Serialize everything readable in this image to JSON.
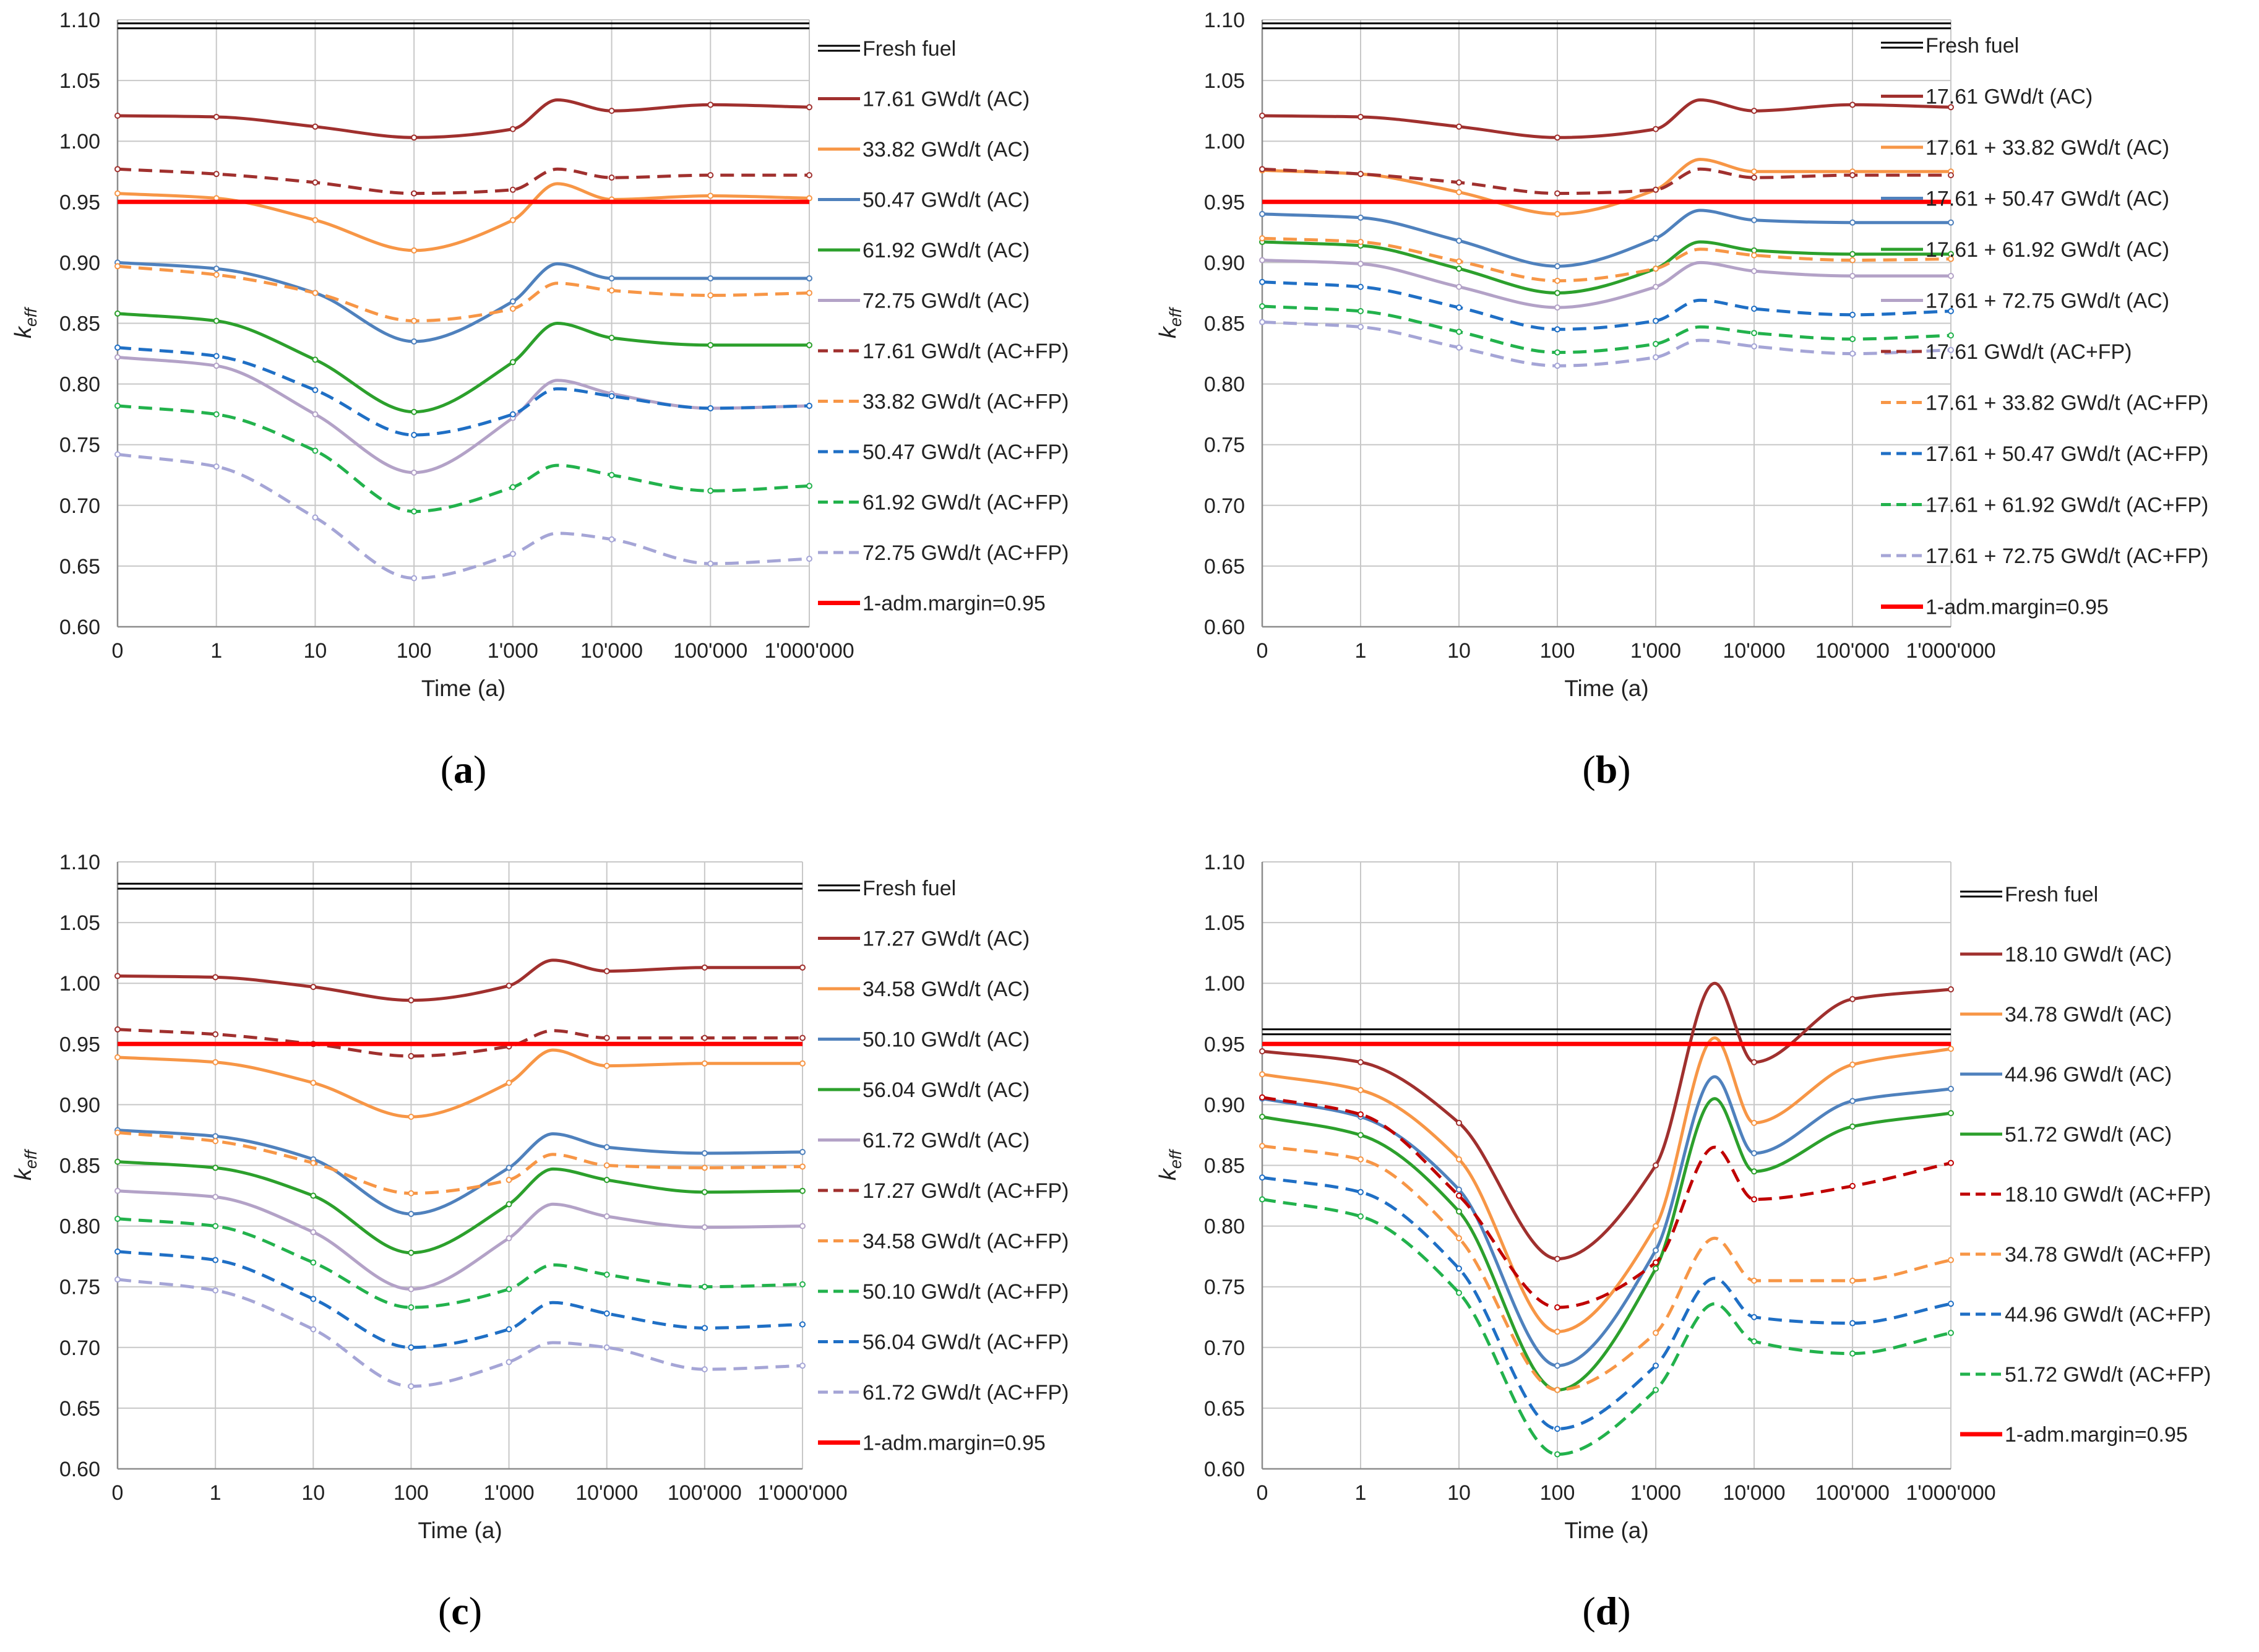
{
  "x_ticks": [
    "0",
    "1",
    "10",
    "100",
    "1'000",
    "10'000",
    "100'000",
    "1'000'000"
  ],
  "y_ticks": [
    "0.60",
    "0.65",
    "0.70",
    "0.75",
    "0.80",
    "0.85",
    "0.90",
    "0.95",
    "1.00",
    "1.05",
    "1.10"
  ],
  "chart_data": [
    {
      "type": "line",
      "panel_label": "a",
      "xlabel": "Time (a)",
      "ylabel": "keff",
      "ylim": [
        0.6,
        1.1
      ],
      "x": [
        0,
        1,
        10,
        100,
        1000,
        10000,
        100000,
        1000000
      ],
      "fresh_fuel": {
        "name": "Fresh fuel",
        "value": 1.095,
        "color": "#000000"
      },
      "margin": {
        "name": "1-adm.margin=0.95",
        "value": 0.95,
        "color": "#ff0000"
      },
      "series": [
        {
          "name": "17.61 GWd/t (AC)",
          "color": "#a0302e",
          "dash": false,
          "values": [
            1.021,
            1.02,
            1.012,
            1.003,
            1.01,
            1.025,
            1.03,
            1.028
          ],
          "feature": {
            "x": 4.45,
            "v": 1.034
          }
        },
        {
          "name": "33.82 GWd/t (AC)",
          "color": "#f79646",
          "dash": false,
          "values": [
            0.957,
            0.953,
            0.935,
            0.91,
            0.935,
            0.952,
            0.955,
            0.953
          ],
          "feature": {
            "x": 4.45,
            "v": 0.965
          }
        },
        {
          "name": "50.47 GWd/t (AC)",
          "color": "#4f81bd",
          "dash": false,
          "values": [
            0.9,
            0.895,
            0.875,
            0.835,
            0.868,
            0.887,
            0.887,
            0.887
          ],
          "feature": {
            "x": 4.45,
            "v": 0.899
          }
        },
        {
          "name": "61.92 GWd/t (AC)",
          "color": "#2ca02c",
          "dash": false,
          "values": [
            0.858,
            0.852,
            0.82,
            0.777,
            0.818,
            0.838,
            0.832,
            0.832
          ],
          "feature": {
            "x": 4.45,
            "v": 0.85
          }
        },
        {
          "name": "72.75 GWd/t (AC)",
          "color": "#b3a2c7",
          "dash": false,
          "values": [
            0.822,
            0.815,
            0.775,
            0.727,
            0.772,
            0.792,
            0.78,
            0.782
          ],
          "feature": {
            "x": 4.45,
            "v": 0.803
          }
        },
        {
          "name": "17.61 GWd/t (AC+FP)",
          "color": "#a0302e",
          "dash": true,
          "values": [
            0.977,
            0.973,
            0.966,
            0.957,
            0.96,
            0.97,
            0.972,
            0.972
          ],
          "feature": {
            "x": 4.45,
            "v": 0.977
          }
        },
        {
          "name": "33.82 GWd/t (AC+FP)",
          "color": "#f79646",
          "dash": true,
          "values": [
            0.897,
            0.89,
            0.875,
            0.852,
            0.862,
            0.877,
            0.873,
            0.875
          ],
          "feature": {
            "x": 4.45,
            "v": 0.883
          }
        },
        {
          "name": "50.47 GWd/t (AC+FP)",
          "color": "#1f6fc5",
          "dash": true,
          "values": [
            0.83,
            0.823,
            0.795,
            0.758,
            0.775,
            0.79,
            0.78,
            0.782
          ],
          "feature": {
            "x": 4.45,
            "v": 0.796
          }
        },
        {
          "name": "61.92 GWd/t (AC+FP)",
          "color": "#22b24c",
          "dash": true,
          "values": [
            0.782,
            0.775,
            0.745,
            0.695,
            0.715,
            0.725,
            0.712,
            0.716
          ],
          "feature": {
            "x": 4.45,
            "v": 0.733
          }
        },
        {
          "name": "72.75 GWd/t (AC+FP)",
          "color": "#a5a5d6",
          "dash": true,
          "values": [
            0.742,
            0.732,
            0.69,
            0.64,
            0.66,
            0.672,
            0.652,
            0.656
          ],
          "feature": {
            "x": 4.45,
            "v": 0.677
          }
        }
      ]
    },
    {
      "type": "line",
      "panel_label": "b",
      "xlabel": "Time (a)",
      "ylabel": "keff",
      "ylim": [
        0.6,
        1.1
      ],
      "x": [
        0,
        1,
        10,
        100,
        1000,
        10000,
        100000,
        1000000
      ],
      "fresh_fuel": {
        "name": "Fresh fuel",
        "value": 1.095,
        "color": "#000000"
      },
      "margin": {
        "name": "1-adm.margin=0.95",
        "value": 0.95,
        "color": "#ff0000"
      },
      "series": [
        {
          "name": "17.61 GWd/t (AC)",
          "color": "#a0302e",
          "dash": false,
          "values": [
            1.021,
            1.02,
            1.012,
            1.003,
            1.01,
            1.025,
            1.03,
            1.028
          ],
          "feature": {
            "x": 4.45,
            "v": 1.034
          }
        },
        {
          "name": "17.61 + 33.82 GWd/t (AC)",
          "color": "#f79646",
          "dash": false,
          "values": [
            0.976,
            0.973,
            0.958,
            0.94,
            0.96,
            0.975,
            0.975,
            0.975
          ],
          "feature": {
            "x": 4.45,
            "v": 0.985
          }
        },
        {
          "name": "17.61 + 50.47 GWd/t (AC)",
          "color": "#4f81bd",
          "dash": false,
          "values": [
            0.94,
            0.937,
            0.918,
            0.897,
            0.92,
            0.935,
            0.933,
            0.933
          ],
          "feature": {
            "x": 4.45,
            "v": 0.943
          }
        },
        {
          "name": "17.61 + 61.92 GWd/t (AC)",
          "color": "#2ca02c",
          "dash": false,
          "values": [
            0.917,
            0.914,
            0.895,
            0.875,
            0.895,
            0.91,
            0.907,
            0.907
          ],
          "feature": {
            "x": 4.45,
            "v": 0.917
          }
        },
        {
          "name": "17.61 + 72.75 GWd/t (AC)",
          "color": "#b3a2c7",
          "dash": false,
          "values": [
            0.902,
            0.899,
            0.88,
            0.863,
            0.88,
            0.893,
            0.889,
            0.889
          ],
          "feature": {
            "x": 4.45,
            "v": 0.9
          }
        },
        {
          "name": "17.61 GWd/t (AC+FP)",
          "color": "#a0302e",
          "dash": true,
          "values": [
            0.977,
            0.973,
            0.966,
            0.957,
            0.96,
            0.97,
            0.972,
            0.972
          ],
          "feature": {
            "x": 4.45,
            "v": 0.977
          }
        },
        {
          "name": "17.61 + 33.82 GWd/t (AC+FP)",
          "color": "#f79646",
          "dash": true,
          "values": [
            0.92,
            0.917,
            0.901,
            0.885,
            0.895,
            0.906,
            0.902,
            0.903
          ],
          "feature": {
            "x": 4.45,
            "v": 0.911
          }
        },
        {
          "name": "17.61 + 50.47 GWd/t (AC+FP)",
          "color": "#1f6fc5",
          "dash": true,
          "values": [
            0.884,
            0.88,
            0.863,
            0.845,
            0.852,
            0.862,
            0.857,
            0.86
          ],
          "feature": {
            "x": 4.45,
            "v": 0.869
          }
        },
        {
          "name": "17.61 + 61.92 GWd/t (AC+FP)",
          "color": "#22b24c",
          "dash": true,
          "values": [
            0.864,
            0.86,
            0.843,
            0.826,
            0.833,
            0.842,
            0.837,
            0.84
          ],
          "feature": {
            "x": 4.45,
            "v": 0.847
          }
        },
        {
          "name": "17.61 + 72.75 GWd/t (AC+FP)",
          "color": "#a5a5d6",
          "dash": true,
          "values": [
            0.851,
            0.847,
            0.83,
            0.815,
            0.822,
            0.831,
            0.825,
            0.828
          ],
          "feature": {
            "x": 4.45,
            "v": 0.836
          }
        }
      ]
    },
    {
      "type": "line",
      "panel_label": "c",
      "xlabel": "Time (a)",
      "ylabel": "keff",
      "ylim": [
        0.6,
        1.1
      ],
      "x": [
        0,
        1,
        10,
        100,
        1000,
        10000,
        100000,
        1000000
      ],
      "fresh_fuel": {
        "name": "Fresh fuel",
        "value": 1.08,
        "color": "#000000"
      },
      "margin": {
        "name": "1-adm.margin=0.95",
        "value": 0.95,
        "color": "#ff0000"
      },
      "series": [
        {
          "name": "17.27 GWd/t (AC)",
          "color": "#a0302e",
          "dash": false,
          "values": [
            1.006,
            1.005,
            0.997,
            0.986,
            0.998,
            1.01,
            1.013,
            1.013
          ],
          "feature": {
            "x": 4.45,
            "v": 1.019
          }
        },
        {
          "name": "34.58 GWd/t (AC)",
          "color": "#f79646",
          "dash": false,
          "values": [
            0.939,
            0.935,
            0.918,
            0.89,
            0.918,
            0.932,
            0.934,
            0.934
          ],
          "feature": {
            "x": 4.45,
            "v": 0.945
          }
        },
        {
          "name": "50.10 GWd/t (AC)",
          "color": "#4f81bd",
          "dash": false,
          "values": [
            0.879,
            0.874,
            0.855,
            0.81,
            0.848,
            0.865,
            0.86,
            0.861
          ],
          "feature": {
            "x": 4.45,
            "v": 0.876
          }
        },
        {
          "name": "56.04 GWd/t (AC)",
          "color": "#2ca02c",
          "dash": false,
          "values": [
            0.853,
            0.848,
            0.825,
            0.778,
            0.818,
            0.838,
            0.828,
            0.829
          ],
          "feature": {
            "x": 4.45,
            "v": 0.847
          }
        },
        {
          "name": "61.72 GWd/t (AC)",
          "color": "#b3a2c7",
          "dash": false,
          "values": [
            0.829,
            0.824,
            0.795,
            0.748,
            0.79,
            0.808,
            0.799,
            0.8
          ],
          "feature": {
            "x": 4.45,
            "v": 0.818
          }
        },
        {
          "name": "17.27 GWd/t (AC+FP)",
          "color": "#a0302e",
          "dash": true,
          "values": [
            0.962,
            0.958,
            0.95,
            0.94,
            0.948,
            0.955,
            0.955,
            0.955
          ],
          "feature": {
            "x": 4.45,
            "v": 0.961
          }
        },
        {
          "name": "34.58 GWd/t (AC+FP)",
          "color": "#f79646",
          "dash": true,
          "values": [
            0.877,
            0.87,
            0.852,
            0.827,
            0.838,
            0.85,
            0.848,
            0.849
          ],
          "feature": {
            "x": 4.45,
            "v": 0.859
          }
        },
        {
          "name": "50.10 GWd/t (AC+FP)",
          "color": "#22b24c",
          "dash": true,
          "values": [
            0.806,
            0.8,
            0.77,
            0.733,
            0.748,
            0.76,
            0.75,
            0.752
          ],
          "feature": {
            "x": 4.45,
            "v": 0.768
          }
        },
        {
          "name": "56.04 GWd/t (AC+FP)",
          "color": "#1f6fc5",
          "dash": true,
          "values": [
            0.779,
            0.772,
            0.74,
            0.7,
            0.715,
            0.728,
            0.716,
            0.719
          ],
          "feature": {
            "x": 4.45,
            "v": 0.737
          }
        },
        {
          "name": "61.72 GWd/t (AC+FP)",
          "color": "#a5a5d6",
          "dash": true,
          "values": [
            0.756,
            0.747,
            0.715,
            0.668,
            0.688,
            0.7,
            0.682,
            0.685
          ],
          "feature": {
            "x": 4.45,
            "v": 0.704
          }
        }
      ]
    },
    {
      "type": "line",
      "panel_label": "d",
      "xlabel": "Time (a)",
      "ylabel": "keff",
      "ylim": [
        0.6,
        1.1
      ],
      "x": [
        0,
        1,
        10,
        100,
        1000,
        10000,
        100000,
        1000000
      ],
      "fresh_fuel": {
        "name": "Fresh fuel",
        "value": 0.96,
        "color": "#000000"
      },
      "margin": {
        "name": "1-adm.margin=0.95",
        "value": 0.95,
        "color": "#ff0000"
      },
      "series": [
        {
          "name": "18.10 GWd/t (AC)",
          "color": "#a0302e",
          "dash": false,
          "values": [
            0.944,
            0.935,
            0.885,
            0.773,
            0.85,
            0.935,
            0.987,
            0.995
          ],
          "feature": {
            "x": 4.6,
            "v": 1.0
          }
        },
        {
          "name": "34.78 GWd/t (AC)",
          "color": "#f79646",
          "dash": false,
          "values": [
            0.925,
            0.912,
            0.855,
            0.713,
            0.8,
            0.885,
            0.933,
            0.946
          ],
          "feature": {
            "x": 4.6,
            "v": 0.955
          }
        },
        {
          "name": "44.96 GWd/t (AC)",
          "color": "#4f81bd",
          "dash": false,
          "values": [
            0.905,
            0.89,
            0.83,
            0.685,
            0.78,
            0.86,
            0.903,
            0.913
          ],
          "feature": {
            "x": 4.6,
            "v": 0.923
          }
        },
        {
          "name": "51.72 GWd/t (AC)",
          "color": "#2ca02c",
          "dash": false,
          "values": [
            0.89,
            0.875,
            0.812,
            0.665,
            0.765,
            0.845,
            0.882,
            0.893
          ],
          "feature": {
            "x": 4.6,
            "v": 0.905
          }
        },
        {
          "name": "18.10 GWd/t (AC+FP)",
          "color": "#c00000",
          "dash": true,
          "values": [
            0.906,
            0.892,
            0.825,
            0.733,
            0.77,
            0.822,
            0.833,
            0.852
          ],
          "feature": {
            "x": 4.6,
            "v": 0.865
          }
        },
        {
          "name": "34.78 GWd/t (AC+FP)",
          "color": "#f79646",
          "dash": true,
          "values": [
            0.866,
            0.855,
            0.79,
            0.665,
            0.712,
            0.755,
            0.755,
            0.772
          ],
          "feature": {
            "x": 4.6,
            "v": 0.79
          }
        },
        {
          "name": "44.96 GWd/t (AC+FP)",
          "color": "#1f6fc5",
          "dash": true,
          "values": [
            0.84,
            0.828,
            0.765,
            0.633,
            0.685,
            0.725,
            0.72,
            0.736
          ],
          "feature": {
            "x": 4.6,
            "v": 0.757
          }
        },
        {
          "name": "51.72 GWd/t (AC+FP)",
          "color": "#22b24c",
          "dash": true,
          "values": [
            0.822,
            0.808,
            0.745,
            0.612,
            0.665,
            0.705,
            0.695,
            0.712
          ],
          "feature": {
            "x": 4.6,
            "v": 0.736
          }
        }
      ]
    }
  ]
}
